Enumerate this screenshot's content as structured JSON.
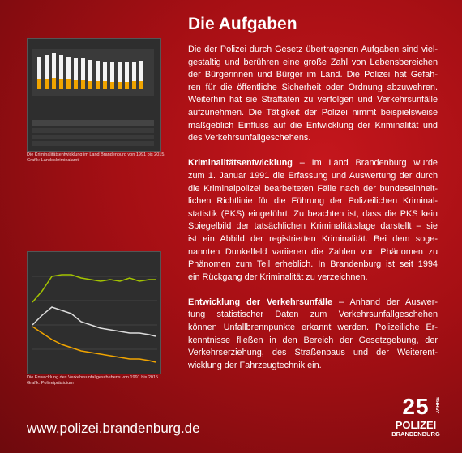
{
  "title": "Die Aufgaben",
  "paragraphs": [
    {
      "heading": null,
      "lines": [
        "Die der Polizei durch Gesetz übertragenen Aufgaben sind viel-",
        "gestaltig und berühren eine große Zahl von Lebensbereichen",
        "der Bürgerinnen und Bürger im Land. Die Polizei hat Gefah-",
        "ren für die öffentliche Sicherheit oder Ordnung abzuwehren.",
        "Weiterhin hat sie Straftaten zu verfolgen und Verkehrsunfälle",
        "aufzunehmen. Die Tätigkeit der Polizei nimmt beispielsweise",
        "maßgeblich Einfluss auf die Entwicklung der Kriminalität und",
        "des Verkehrsunfallgeschehens."
      ]
    },
    {
      "heading": "Kriminalitätsentwicklung",
      "lines": [
        " – Im Land Brandenburg wurde",
        "zum 1. Januar 1991 die Erfassung und Auswertung der durch",
        "die Kriminalpolizei bearbeiteten Fälle nach der bundeseinheit-",
        "lichen Richtlinie für die Führung der Polizeilichen Kriminal-",
        "statistik (PKS) eingeführt. Zu beachten ist, dass die PKS kein",
        "Spiegelbild der tatsächlichen Kriminalitätslage darstellt – sie",
        "ist ein Abbild der registrierten Kriminalität. Bei dem soge-",
        "nannten Dunkelfeld variieren die Zahlen von Phänomen zu",
        "Phänomen zum Teil erheblich. In Brandenburg ist seit 1994",
        "ein Rückgang der Kriminalität zu verzeichnen."
      ]
    },
    {
      "heading": "Entwicklung der Verkehrsunfälle",
      "lines": [
        " – Anhand der Auswer-",
        "tung statistischer Daten zum Verkehrsunfallgeschehen",
        "können Unfallbrennpunkte erkannt werden. Polizeiliche Er-",
        "kenntnisse fließen in den Bereich der Gesetzgebung, der",
        "Verkehrserziehung, des Straßenbaus und der Weiterent-",
        "wicklung der Fahrzeugtechnik ein."
      ]
    }
  ],
  "captions": [
    [
      "Die Kriminalitätsentwicklung im Land Brandenburg von 1991 bis 2015.",
      "Grafik: Landeskriminalamt"
    ],
    [
      "Die Entwicklung des Verkehrsunfallgeschehens von 1991 bis 2015.",
      "Grafik: Polizeipräsidium"
    ]
  ],
  "footer": {
    "url": "www.polizei.brandenburg.de",
    "logo": {
      "number": "25",
      "jahre": "JAHRE",
      "name": "POLIZEI",
      "region": "BRANDENBURG"
    }
  }
}
